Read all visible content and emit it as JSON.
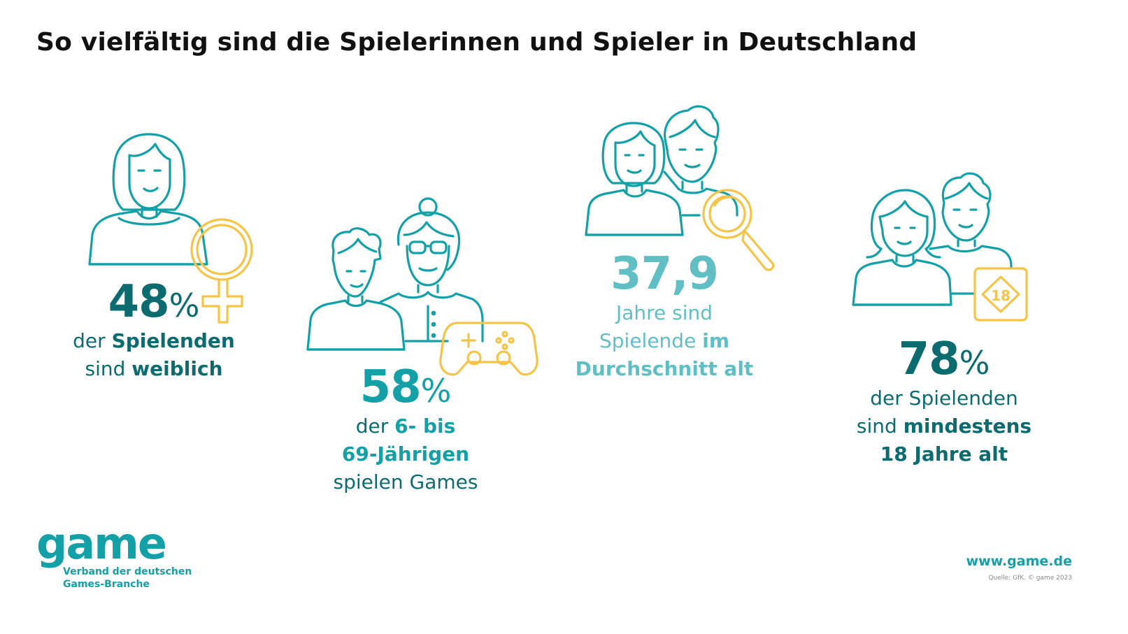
{
  "title": "So vielfältig sind die Spielerinnen und Spieler in Deutschland",
  "colors": {
    "dark_teal": "#0b6b6f",
    "teal": "#13a0a6",
    "light_teal": "#5fbfc4",
    "yellow": "#f5c446",
    "text": "#111111"
  },
  "stats": {
    "female": {
      "value": "48",
      "unit": "%",
      "line1_a": "der ",
      "line1_b": "Spielenden",
      "line2_a": "sind ",
      "line2_b": "weiblich",
      "icon": "female-symbol-icon"
    },
    "players": {
      "value": "58",
      "unit": "%",
      "line1_a": "der ",
      "line1_b": "6- bis",
      "line2_b": "69-Jährigen",
      "line3": "spielen Games",
      "icon": "gamepad-icon"
    },
    "age": {
      "value": "37,9",
      "line1": "Jahre sind",
      "line2_a": "Spielende ",
      "line2_b": "im",
      "line3_b": "Durchschnitt alt",
      "icon": "magnifier-icon"
    },
    "adults": {
      "value": "78",
      "unit": "%",
      "line1": "der Spielenden",
      "line2_a": "sind ",
      "line2_b": "mindestens",
      "line3_b": "18 Jahre alt",
      "badge": "18",
      "icon": "age-18-badge-icon"
    }
  },
  "logo": {
    "word": "game",
    "line1": "Verband der deutschen",
    "line2": "Games-Branche"
  },
  "footer": {
    "website": "www.game.de",
    "source": "Quelle: GfK. © game 2023"
  }
}
